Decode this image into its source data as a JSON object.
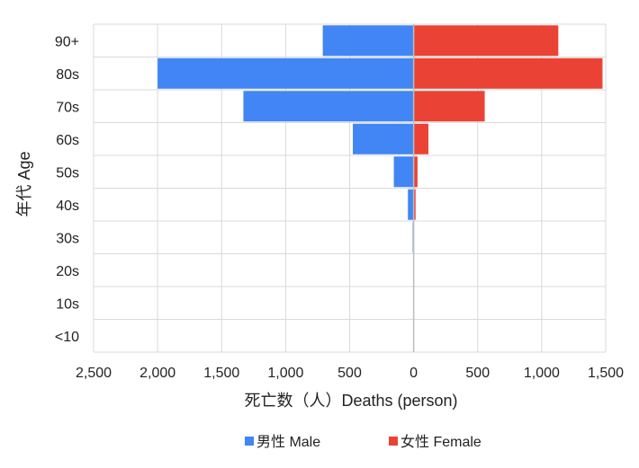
{
  "chart_data": {
    "type": "bar",
    "orientation": "horizontal-diverging",
    "title": "",
    "categories": [
      "90+",
      "80s",
      "70s",
      "60s",
      "50s",
      "40s",
      "30s",
      "20s",
      "10s",
      "<10"
    ],
    "series": [
      {
        "name": "男性 Male",
        "color": "#4285f4",
        "values": [
          710,
          2000,
          1330,
          475,
          155,
          45,
          8,
          0,
          0,
          0
        ]
      },
      {
        "name": "女性 Female",
        "color": "#ea4335",
        "values": [
          1130,
          1475,
          555,
          115,
          30,
          15,
          0,
          0,
          0,
          0
        ]
      }
    ],
    "xlabel": "死亡数（人）Deaths (person)",
    "ylabel": "年代 Age",
    "xlim": [
      -2500,
      1500
    ],
    "x_ticks": [
      -2500,
      -2000,
      -1500,
      -1000,
      -500,
      0,
      500,
      1000,
      1500
    ],
    "x_tick_labels": [
      "2,500",
      "2,000",
      "1,500",
      "1,000",
      "500",
      "0",
      "500",
      "1,000",
      "1,500"
    ],
    "grid": true,
    "legend_position": "bottom"
  }
}
